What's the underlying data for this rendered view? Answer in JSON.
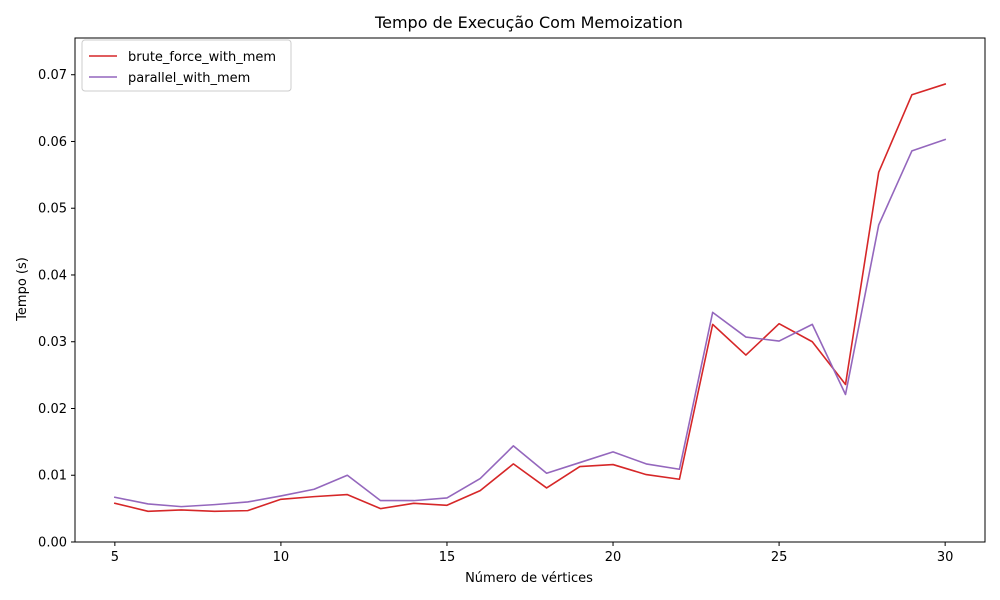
{
  "chart_data": {
    "type": "line",
    "title": "Tempo de Execução Com Memoization",
    "xlabel": "Número de vértices",
    "ylabel": "Tempo (s)",
    "xlim": [
      3.8,
      31.2
    ],
    "ylim": [
      0.0,
      0.0755
    ],
    "xticks": [
      5,
      10,
      15,
      20,
      25,
      30
    ],
    "yticks": [
      0.0,
      0.01,
      0.02,
      0.03,
      0.04,
      0.05,
      0.06,
      0.07
    ],
    "ytick_labels": [
      "0.00",
      "0.01",
      "0.02",
      "0.03",
      "0.04",
      "0.05",
      "0.06",
      "0.07"
    ],
    "xtick_labels": [
      "5",
      "10",
      "15",
      "20",
      "25",
      "30"
    ],
    "legend_position": "upper-left",
    "grid": false,
    "x": [
      5,
      6,
      7,
      8,
      9,
      10,
      11,
      12,
      13,
      14,
      15,
      16,
      17,
      18,
      19,
      20,
      21,
      22,
      23,
      24,
      25,
      26,
      27,
      28,
      29,
      30
    ],
    "series": [
      {
        "name": "brute_force_with_mem",
        "color": "#d62728",
        "values": [
          0.0058,
          0.0046,
          0.0048,
          0.0046,
          0.0047,
          0.0064,
          0.0068,
          0.0071,
          0.005,
          0.0058,
          0.0055,
          0.0077,
          0.0117,
          0.0081,
          0.0113,
          0.0116,
          0.0101,
          0.0094,
          0.0326,
          0.028,
          0.0327,
          0.03,
          0.0236,
          0.0554,
          0.067,
          0.0686
        ]
      },
      {
        "name": "parallel_with_mem",
        "color": "#9467bd",
        "values": [
          0.0067,
          0.0057,
          0.0053,
          0.0056,
          0.006,
          0.0069,
          0.0079,
          0.01,
          0.0062,
          0.0062,
          0.0066,
          0.0095,
          0.0144,
          0.0103,
          0.0119,
          0.0135,
          0.0117,
          0.0109,
          0.0344,
          0.0307,
          0.0301,
          0.0326,
          0.0221,
          0.0475,
          0.0586,
          0.0603
        ]
      }
    ]
  }
}
